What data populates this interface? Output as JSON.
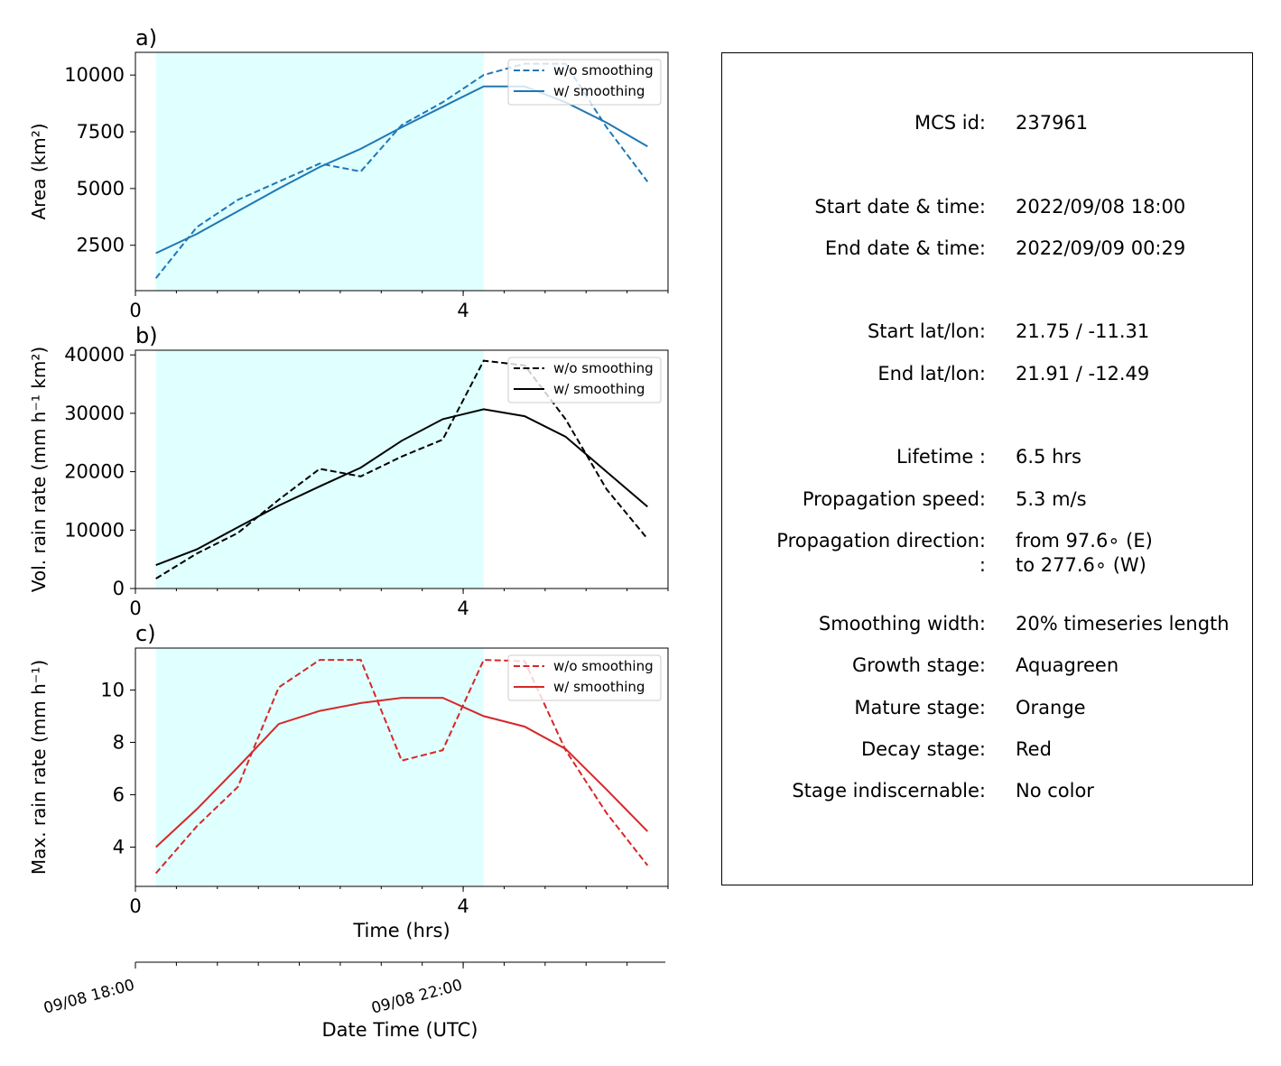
{
  "chart_data": [
    {
      "type": "line",
      "panel_label": "a)",
      "ylabel": "Area  (km²)",
      "xlabel": "",
      "xlim": [
        0,
        6.5
      ],
      "ylim": [
        500,
        11000
      ],
      "yticks": [
        2500,
        5000,
        7500,
        10000
      ],
      "xticks": [
        0,
        4
      ],
      "xminor_step": 0.5,
      "x": [
        0.25,
        0.75,
        1.25,
        1.75,
        2.25,
        2.75,
        3.25,
        3.75,
        4.25,
        4.75,
        5.25,
        5.75,
        6.25
      ],
      "series": [
        {
          "name": "w/o smoothing",
          "style": "dashed",
          "color": "#1f77b4",
          "values": [
            1050,
            3300,
            4500,
            5300,
            6100,
            5750,
            7800,
            8800,
            10000,
            10500,
            10500,
            7700,
            5300
          ]
        },
        {
          "name": "w/ smoothing",
          "style": "solid",
          "color": "#1f77b4",
          "values": [
            2150,
            3000,
            4000,
            5000,
            5950,
            6750,
            7700,
            8600,
            9500,
            9500,
            8800,
            7900,
            6850
          ]
        }
      ],
      "shaded_span": [
        0.25,
        4.25
      ],
      "shaded_color": "#e0ffff",
      "legend_loc": "upper right"
    },
    {
      "type": "line",
      "panel_label": "b)",
      "ylabel": "Vol. rain rate (mm h⁻¹ km²)",
      "xlabel": "",
      "xlim": [
        0,
        6.5
      ],
      "ylim": [
        0,
        40800
      ],
      "yticks": [
        0,
        10000,
        20000,
        30000,
        40000
      ],
      "xticks": [
        0,
        4
      ],
      "xminor_step": 0.5,
      "x": [
        0.25,
        0.75,
        1.25,
        1.75,
        2.25,
        2.75,
        3.25,
        3.75,
        4.25,
        4.75,
        5.25,
        5.75,
        6.25
      ],
      "series": [
        {
          "name": "w/o smoothing",
          "style": "dashed",
          "color": "#000000",
          "values": [
            1700,
            6000,
            9500,
            15200,
            20500,
            19200,
            22600,
            25500,
            39000,
            38200,
            29000,
            17000,
            8500
          ]
        },
        {
          "name": "w/ smoothing",
          "style": "solid",
          "color": "#000000",
          "values": [
            4000,
            6700,
            10500,
            14200,
            17500,
            20700,
            25300,
            29000,
            30700,
            29500,
            26000,
            20000,
            14000
          ]
        }
      ],
      "shaded_span": [
        0.25,
        4.25
      ],
      "shaded_color": "#e0ffff",
      "legend_loc": "upper right"
    },
    {
      "type": "line",
      "panel_label": "c)",
      "ylabel": "Max. rain rate  (mm h⁻¹)",
      "xlabel": "Time (hrs)",
      "xlim": [
        0,
        6.5
      ],
      "ylim": [
        2.5,
        11.6
      ],
      "yticks": [
        4,
        6,
        8,
        10
      ],
      "xticks": [
        0,
        4
      ],
      "xminor_step": 0.5,
      "x": [
        0.25,
        0.75,
        1.25,
        1.75,
        2.25,
        2.75,
        3.25,
        3.75,
        4.25,
        4.75,
        5.25,
        5.75,
        6.25
      ],
      "series": [
        {
          "name": "w/o smoothing",
          "style": "dashed",
          "color": "#d62728",
          "values": [
            3.0,
            4.8,
            6.3,
            10.1,
            11.15,
            11.15,
            7.3,
            7.7,
            11.15,
            11.1,
            7.7,
            5.3,
            3.3
          ]
        },
        {
          "name": "w/ smoothing",
          "style": "solid",
          "color": "#d62728",
          "values": [
            4.0,
            5.45,
            7.05,
            8.7,
            9.2,
            9.5,
            9.7,
            9.7,
            9.0,
            8.6,
            7.75,
            6.2,
            4.6
          ]
        }
      ],
      "shaded_span": [
        0.25,
        4.25
      ],
      "shaded_color": "#e0ffff",
      "legend_loc": "upper right"
    }
  ],
  "secondary_axis": {
    "xlabel": "Date Time (UTC)",
    "ticks": [
      {
        "x": 0,
        "label": "09/08 18:00"
      },
      {
        "x": 4,
        "label": "09/08 22:00"
      }
    ]
  },
  "info": {
    "rows": [
      {
        "key": "MCS id:",
        "value": "237961"
      },
      {
        "key": "Start date & time:",
        "value": "2022/09/08 18:00"
      },
      {
        "key": "End date & time:",
        "value": "2022/09/09 00:29"
      },
      {
        "key": "Start lat/lon:",
        "value": "21.75 / -11.31"
      },
      {
        "key": "End lat/lon:",
        "value": "21.91 / -12.49"
      },
      {
        "key": "Lifetime :",
        "value": "6.5 hrs"
      },
      {
        "key": "Propagation speed:",
        "value": "5.3 m/s"
      },
      {
        "key": "Propagation direction:",
        "value": "from  97.6∘ (E)"
      },
      {
        "key": ":",
        "value": "to   277.6∘ (W)"
      },
      {
        "key": "Smoothing width:",
        "value": "20% timeseries length"
      },
      {
        "key": "Growth stage:",
        "value": "Aquagreen"
      },
      {
        "key": "Mature stage:",
        "value": "Orange"
      },
      {
        "key": "Decay stage:",
        "value": "Red"
      },
      {
        "key": "Stage indiscernable:",
        "value": "No color"
      }
    ]
  }
}
